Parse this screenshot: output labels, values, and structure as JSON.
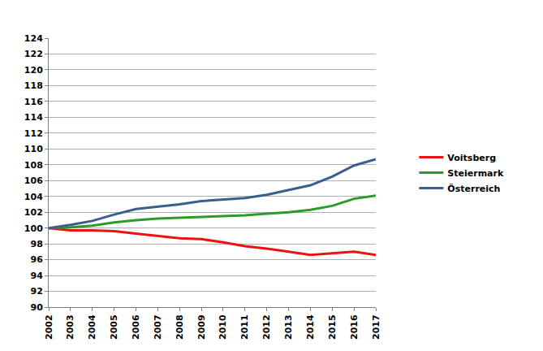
{
  "chart_data": {
    "type": "line",
    "x": [
      2002,
      2003,
      2004,
      2005,
      2006,
      2007,
      2008,
      2009,
      2010,
      2011,
      2012,
      2013,
      2014,
      2015,
      2016,
      2017
    ],
    "series": [
      {
        "name": "Voitsberg",
        "color": "#ee1111",
        "values": [
          100,
          99.7,
          99.7,
          99.6,
          99.3,
          99.0,
          98.7,
          98.6,
          98.2,
          97.7,
          97.4,
          97.0,
          96.6,
          96.8,
          97.0,
          96.6
        ]
      },
      {
        "name": "Steiermark",
        "color": "#2a9a2a",
        "values": [
          100,
          100.1,
          100.3,
          100.7,
          101.0,
          101.2,
          101.3,
          101.4,
          101.5,
          101.6,
          101.8,
          102.0,
          102.3,
          102.8,
          103.7,
          104.1
        ]
      },
      {
        "name": "Österreich",
        "color": "#3a5f8f",
        "values": [
          100,
          100.4,
          100.9,
          101.7,
          102.4,
          102.7,
          103.0,
          103.4,
          103.6,
          103.8,
          104.2,
          104.8,
          105.4,
          106.5,
          107.9,
          108.7
        ]
      }
    ],
    "xlim": [
      2002,
      2017
    ],
    "xticks": [
      2002,
      2003,
      2004,
      2005,
      2006,
      2007,
      2008,
      2009,
      2010,
      2011,
      2012,
      2013,
      2014,
      2015,
      2016,
      2017
    ],
    "ylim": [
      90,
      124
    ],
    "yticks": [
      90,
      92,
      94,
      96,
      98,
      100,
      102,
      104,
      106,
      108,
      110,
      112,
      114,
      116,
      118,
      120,
      122,
      124
    ],
    "grid": true,
    "legend": "right"
  }
}
